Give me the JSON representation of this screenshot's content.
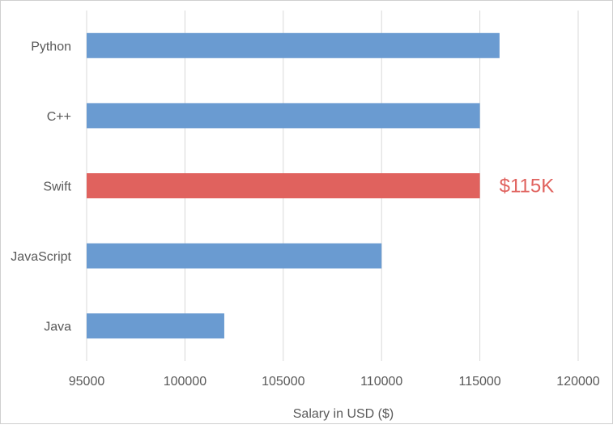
{
  "chart_data": {
    "type": "bar",
    "orientation": "horizontal",
    "categories": [
      "Python",
      "C++",
      "Swift",
      "JavaScript",
      "Java"
    ],
    "values": [
      116000,
      115000,
      115000,
      110000,
      102000
    ],
    "xlabel": "Salary in USD ($)",
    "ylabel": "",
    "xlim": [
      95000,
      120000
    ],
    "xticks": [
      "95000",
      "100000",
      "105000",
      "110000",
      "115000",
      "120000"
    ],
    "grid": "vertical",
    "legend": "none",
    "highlight": {
      "category": "Swift",
      "label": "$115K"
    },
    "colors": {
      "bar": "#6a9bd1",
      "highlight": "#e0625e",
      "grid": "#d9d9d9",
      "axis_text": "#595959"
    }
  }
}
